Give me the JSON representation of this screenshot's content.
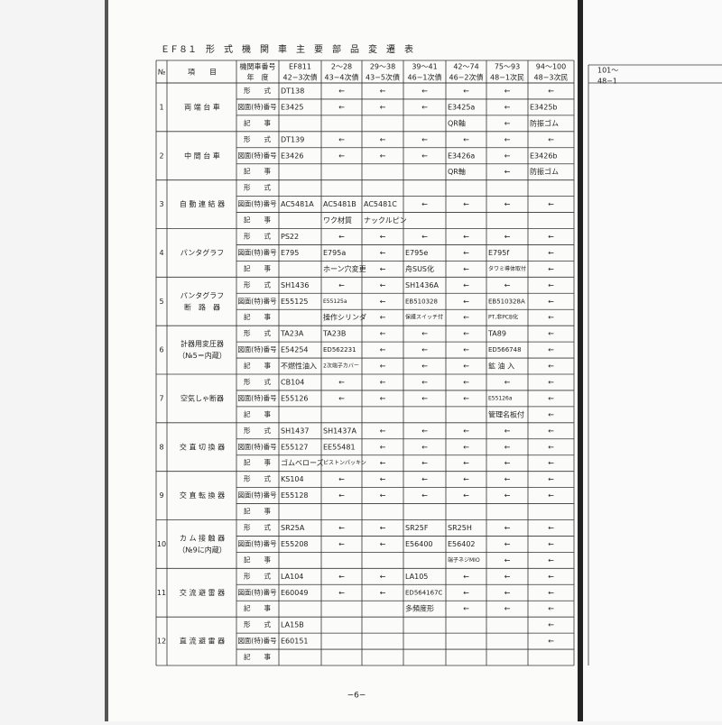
{
  "title": "ＥＦ８１　形　式　機　関　車　主　要　部　品　変　遷　表",
  "header": {
    "no": "№",
    "item": "項　　目",
    "columns": [
      [
        "機関車番号",
        "年　度"
      ],
      [
        "EF811",
        "42−3次債"
      ],
      [
        "2〜28",
        "43−4次債"
      ],
      [
        "29〜38",
        "43−5次債"
      ],
      [
        "39〜41",
        "46−1次債"
      ],
      [
        "42〜74",
        "46−2次債"
      ],
      [
        "75〜93",
        "48−1次民"
      ],
      [
        "94〜100",
        "48−3次民"
      ]
    ]
  },
  "row_labels": [
    "形　　式",
    "図面(特)番号",
    "記　　事"
  ],
  "groups": [
    {
      "no": "1",
      "label": [
        "両 端 台 車"
      ],
      "rows": [
        [
          "DT138",
          "←",
          "←",
          "←",
          "←",
          "←",
          "←"
        ],
        [
          "E3425",
          "←",
          "←",
          "←",
          "E3425a",
          "←",
          "E3425b"
        ],
        [
          null,
          null,
          null,
          null,
          "QR軸",
          "←",
          "防振ゴム"
        ]
      ]
    },
    {
      "no": "2",
      "label": [
        "中 間 台 車"
      ],
      "rows": [
        [
          "DT139",
          "←",
          "←",
          "←",
          "←",
          "←",
          "←"
        ],
        [
          "E3426",
          "←",
          "←",
          "←",
          "E3426a",
          "←",
          "E3426b"
        ],
        [
          null,
          null,
          null,
          null,
          "QR軸",
          "←",
          "防振ゴム"
        ]
      ]
    },
    {
      "no": "3",
      "label": [
        "自 動 連 結 器"
      ],
      "rows": [
        [
          null,
          null,
          null,
          null,
          null,
          null,
          null
        ],
        [
          "AC5481A",
          "AC5481B",
          "AC5481C",
          "←",
          "←",
          "←",
          "←"
        ],
        [
          null,
          "ワク材質",
          "ナックルピン",
          null,
          null,
          null,
          null
        ]
      ]
    },
    {
      "no": "4",
      "label": [
        "パンタグラフ"
      ],
      "rows": [
        [
          "PS22",
          "←",
          "←",
          "←",
          "←",
          "←",
          "←"
        ],
        [
          "E795",
          "E795a",
          "←",
          "E795e",
          "←",
          "E795f",
          "←"
        ],
        [
          null,
          "ホーン穴変更",
          "←",
          "舟SUS化",
          "←",
          "タワミ導体取付",
          "←"
        ]
      ]
    },
    {
      "no": "5",
      "label": [
        "パンタグラフ",
        "断　路　器"
      ],
      "rows": [
        [
          "SH1436",
          "←",
          "←",
          "SH1436A",
          "←",
          "←",
          "←"
        ],
        [
          "E55125",
          "E55125a",
          "←",
          "EB510328",
          "←",
          "EB510328A",
          "←"
        ],
        [
          null,
          "操作シリンダ",
          "←",
          "保護スイッチ付",
          "←",
          "PT,非PCB化",
          "←"
        ]
      ]
    },
    {
      "no": "6",
      "label": [
        "計器用変圧器",
        "（№5＝内蔵）"
      ],
      "rows": [
        [
          "TA23A",
          "TA23B",
          "←",
          "←",
          "←",
          "TA89",
          "←"
        ],
        [
          "E54254",
          "ED562231",
          "←",
          "←",
          "←",
          "ED566748",
          "←"
        ],
        [
          "不燃性油入",
          "2次端子カバー",
          "←",
          "←",
          "←",
          "鉱 油 入",
          "←"
        ]
      ]
    },
    {
      "no": "7",
      "label": [
        "空気しゃ断器"
      ],
      "rows": [
        [
          "CB104",
          "←",
          "←",
          "←",
          "←",
          "←",
          "←"
        ],
        [
          "E55126",
          "←",
          "←",
          "←",
          "←",
          "E55126a",
          "←"
        ],
        [
          null,
          null,
          null,
          null,
          null,
          "管理名板付",
          "←"
        ]
      ]
    },
    {
      "no": "8",
      "label": [
        "交 直 切 換 器"
      ],
      "rows": [
        [
          "SH1437",
          "SH1437A",
          "←",
          "←",
          "←",
          "←",
          "←"
        ],
        [
          "E55127",
          "EE55481",
          "←",
          "←",
          "←",
          "←",
          "←"
        ],
        [
          "ゴムベローズ",
          "ピストンパッキン",
          "←",
          "←",
          "←",
          "←",
          "←"
        ]
      ]
    },
    {
      "no": "9",
      "label": [
        "交 直 転 換 器"
      ],
      "rows": [
        [
          "KS104",
          "←",
          "←",
          "←",
          "←",
          "←",
          "←"
        ],
        [
          "E55128",
          "←",
          "←",
          "←",
          "←",
          "←",
          "←"
        ],
        [
          null,
          null,
          null,
          null,
          null,
          null,
          null
        ]
      ]
    },
    {
      "no": "10",
      "label": [
        "カ ム 接 触 器",
        "（№9に内蔵）"
      ],
      "rows": [
        [
          "SR25A",
          "←",
          "←",
          "SR25F",
          "SR25H",
          "←",
          "←"
        ],
        [
          "E55208",
          "←",
          "←",
          "E56400",
          "E56402",
          "←",
          "←"
        ],
        [
          null,
          null,
          null,
          null,
          "端子ネジMIO",
          "←",
          "←"
        ]
      ]
    },
    {
      "no": "11",
      "label": [
        "交 流 避 雷 器"
      ],
      "rows": [
        [
          "LA104",
          "←",
          "←",
          "LA105",
          "←",
          "←",
          "←"
        ],
        [
          "E60049",
          "←",
          "←",
          "ED564167C",
          "←",
          "←",
          "←"
        ],
        [
          null,
          null,
          null,
          "多頻度形",
          "←",
          "←",
          "←"
        ]
      ]
    },
    {
      "no": "12",
      "label": [
        "直 流 避 雷 器"
      ],
      "rows": [
        [
          "LA15B",
          null,
          null,
          null,
          null,
          null,
          "←"
        ],
        [
          "E60151",
          null,
          null,
          null,
          null,
          null,
          "←"
        ],
        [
          null,
          null,
          null,
          null,
          null,
          null,
          null
        ]
      ]
    }
  ],
  "page_number": "−6−",
  "next_page": [
    "101〜",
    "48−1"
  ]
}
